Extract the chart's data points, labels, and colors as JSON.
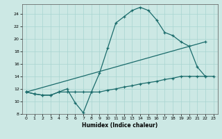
{
  "xlabel": "Humidex (Indice chaleur)",
  "xlim": [
    -0.5,
    23.5
  ],
  "ylim": [
    8,
    25.5
  ],
  "yticks": [
    8,
    10,
    12,
    14,
    16,
    18,
    20,
    22,
    24
  ],
  "xticks": [
    0,
    1,
    2,
    3,
    4,
    5,
    6,
    7,
    8,
    9,
    10,
    11,
    12,
    13,
    14,
    15,
    16,
    17,
    18,
    19,
    20,
    21,
    22,
    23
  ],
  "bg_color": "#cce8e4",
  "line_color": "#1a6b6b",
  "line1_x": [
    0,
    1,
    2,
    3,
    4,
    5,
    6,
    7,
    8,
    9,
    10,
    11,
    12,
    13,
    14,
    15,
    16,
    17,
    18,
    19,
    20,
    21,
    22
  ],
  "line1_y": [
    11.5,
    11.2,
    11.0,
    11.0,
    11.5,
    12.0,
    9.8,
    8.2,
    11.5,
    14.5,
    18.5,
    22.5,
    23.5,
    24.5,
    25.0,
    24.5,
    23.0,
    21.0,
    20.5,
    19.5,
    18.8,
    15.5,
    14.0
  ],
  "line2_x": [
    0,
    22
  ],
  "line2_y": [
    11.5,
    19.5
  ],
  "line3_x": [
    0,
    1,
    2,
    3,
    4,
    5,
    6,
    7,
    8,
    9,
    10,
    11,
    12,
    13,
    14,
    15,
    16,
    17,
    18,
    19,
    20,
    21,
    22,
    23
  ],
  "line3_y": [
    11.5,
    11.2,
    11.0,
    11.0,
    11.5,
    11.5,
    11.5,
    11.5,
    11.5,
    11.5,
    11.8,
    12.0,
    12.3,
    12.5,
    12.8,
    13.0,
    13.2,
    13.5,
    13.7,
    14.0,
    14.0,
    14.0,
    14.0,
    14.0
  ]
}
